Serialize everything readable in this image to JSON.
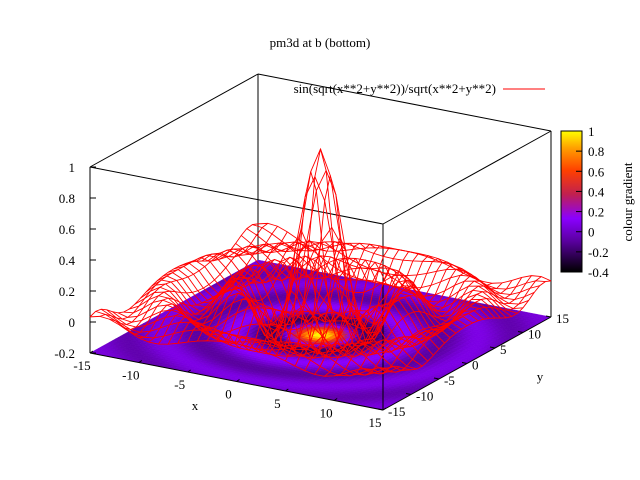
{
  "chart_data": {
    "type": "surface",
    "title": "pm3d at b (bottom)",
    "xlabel": "x",
    "ylabel": "y",
    "zlabel": "",
    "colorbox_label": "colour gradient",
    "xlim": [
      -15,
      15
    ],
    "ylim": [
      -15,
      15
    ],
    "zlim": [
      -0.2,
      1
    ],
    "cblim": [
      -0.4,
      1
    ],
    "x_ticks": [
      "-15",
      "-10",
      "-5",
      "0",
      "5",
      "10",
      "15"
    ],
    "y_ticks": [
      "-15",
      "-10",
      "-5",
      "0",
      "5",
      "10",
      "15"
    ],
    "z_ticks": [
      "-0.2",
      "0",
      "0.2",
      "0.4",
      "0.6",
      "0.8",
      "1"
    ],
    "cb_ticks": [
      "-0.4",
      "-0.2",
      "0",
      "0.2",
      "0.4",
      "0.6",
      "0.8",
      "1"
    ],
    "series": [
      {
        "name": "sin(sqrt(x**2+y**2))/sqrt(x**2+y**2)",
        "function": "sin(sqrt(x**2+y**2))/sqrt(x**2+y**2)",
        "style": "wireframe",
        "color": "#ff0000"
      }
    ],
    "pm3d": "bottom",
    "palette": [
      "#000000",
      "#5a00a0",
      "#8a00ff",
      "#c02050",
      "#ff4000",
      "#ffa000",
      "#ffff00"
    ],
    "legend_position": "top-right"
  }
}
